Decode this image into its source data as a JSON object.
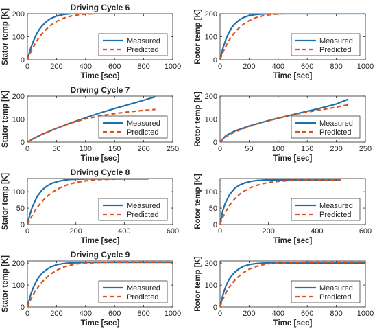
{
  "figure": {
    "background": "#ffffff"
  },
  "colors": {
    "measured": "#1f6fae",
    "predicted": "#d9531e",
    "axis": "#262626"
  },
  "chart_data": [
    {
      "type": "line",
      "title": "Driving Cycle 6",
      "xlabel": "Time [sec]",
      "ylabel": "Stator temp [K]",
      "xlim": [
        0,
        1000
      ],
      "ylim": [
        0,
        200
      ],
      "xticks": [
        0,
        200,
        400,
        600,
        800,
        1000
      ],
      "yticks": [
        0,
        100,
        200
      ],
      "legend": "bottom-right",
      "series": [
        {
          "name": "Measured",
          "style": "solid",
          "x": [
            0,
            20,
            40,
            60,
            80,
            100,
            130,
            160,
            200,
            250,
            300,
            350,
            400,
            500,
            600,
            700,
            800,
            900,
            1000
          ],
          "y": [
            0,
            45,
            80,
            108,
            130,
            147,
            166,
            179,
            190,
            197,
            200,
            201,
            201,
            201,
            201,
            201,
            201,
            201,
            201
          ]
        },
        {
          "name": "Predicted",
          "style": "dashed",
          "x": [
            0,
            20,
            40,
            60,
            80,
            100,
            130,
            160,
            200,
            250,
            300,
            350,
            400,
            500,
            600,
            700,
            800,
            900,
            1000
          ],
          "y": [
            0,
            30,
            55,
            78,
            97,
            113,
            133,
            150,
            166,
            181,
            190,
            195,
            198,
            201,
            202,
            202,
            202,
            202,
            202
          ]
        }
      ]
    },
    {
      "type": "line",
      "title": "",
      "xlabel": "Time [sec]",
      "ylabel": "Rotor temp [K]",
      "xlim": [
        0,
        1000
      ],
      "ylim": [
        0,
        200
      ],
      "xticks": [
        0,
        200,
        400,
        600,
        800,
        1000
      ],
      "yticks": [
        0,
        100,
        200
      ],
      "legend": "bottom-right",
      "series": [
        {
          "name": "Measured",
          "style": "solid",
          "x": [
            0,
            20,
            40,
            60,
            80,
            100,
            130,
            160,
            200,
            250,
            300,
            350,
            400,
            500,
            600,
            700,
            800,
            900,
            1000
          ],
          "y": [
            0,
            50,
            88,
            117,
            139,
            155,
            172,
            183,
            192,
            197,
            199,
            200,
            200,
            200,
            200,
            200,
            200,
            200,
            200
          ]
        },
        {
          "name": "Predicted",
          "style": "dashed",
          "x": [
            0,
            20,
            40,
            60,
            80,
            100,
            130,
            160,
            200,
            250,
            300,
            350,
            400,
            500,
            600,
            700,
            800,
            900,
            1000
          ],
          "y": [
            0,
            32,
            58,
            82,
            102,
            118,
            138,
            154,
            170,
            184,
            192,
            196,
            199,
            201,
            202,
            202,
            202,
            202,
            202
          ]
        }
      ]
    },
    {
      "type": "line",
      "title": "Driving Cycle 7",
      "xlabel": "Time [sec]",
      "ylabel": "Stator temp [K]",
      "xlim": [
        0,
        250
      ],
      "ylim": [
        0,
        200
      ],
      "xticks": [
        0,
        50,
        100,
        150,
        200,
        250
      ],
      "yticks": [
        0,
        100,
        200
      ],
      "legend": "bottom-right",
      "series": [
        {
          "name": "Measured",
          "style": "solid",
          "x": [
            0,
            10,
            25,
            50,
            75,
            100,
            125,
            150,
            175,
            200,
            220
          ],
          "y": [
            0,
            15,
            34,
            60,
            84,
            106,
            127,
            146,
            164,
            182,
            197
          ]
        },
        {
          "name": "Predicted",
          "style": "dashed",
          "x": [
            0,
            10,
            25,
            50,
            75,
            100,
            125,
            150,
            175,
            200,
            220
          ],
          "y": [
            0,
            15,
            34,
            60,
            83,
            101,
            114,
            124,
            132,
            138,
            142
          ]
        }
      ]
    },
    {
      "type": "line",
      "title": "",
      "xlabel": "Time [sec]",
      "ylabel": "Rotor temp [K]",
      "xlim": [
        0,
        250
      ],
      "ylim": [
        0,
        200
      ],
      "xticks": [
        0,
        50,
        100,
        150,
        200,
        250
      ],
      "yticks": [
        0,
        100,
        200
      ],
      "legend": "bottom-right",
      "series": [
        {
          "name": "Measured",
          "style": "solid",
          "x": [
            0,
            10,
            25,
            50,
            75,
            100,
            125,
            150,
            175,
            200,
            220
          ],
          "y": [
            0,
            28,
            48,
            70,
            88,
            104,
            119,
            134,
            149,
            166,
            186
          ]
        },
        {
          "name": "Predicted",
          "style": "dashed",
          "x": [
            0,
            10,
            25,
            50,
            75,
            100,
            125,
            150,
            175,
            200,
            220
          ],
          "y": [
            0,
            24,
            44,
            68,
            88,
            105,
            119,
            131,
            141,
            152,
            162
          ]
        }
      ]
    },
    {
      "type": "line",
      "title": "Driving Cycle 8",
      "xlabel": "Time [sec]",
      "ylabel": "Stator temp [K]",
      "xlim": [
        0,
        600
      ],
      "ylim": [
        0,
        140
      ],
      "xticks": [
        0,
        200,
        400,
        600
      ],
      "yticks": [
        0,
        50,
        100
      ],
      "legend": "bottom-right",
      "series": [
        {
          "name": "Measured",
          "style": "solid",
          "x": [
            0,
            10,
            20,
            40,
            60,
            80,
            100,
            125,
            150,
            175,
            200,
            250,
            300,
            350,
            400,
            450,
            500
          ],
          "y": [
            0,
            30,
            53,
            85,
            105,
            117,
            125,
            131,
            135,
            137,
            138,
            139,
            139,
            139,
            139,
            139,
            139
          ]
        },
        {
          "name": "Predicted",
          "style": "dashed",
          "x": [
            0,
            10,
            20,
            40,
            60,
            80,
            100,
            125,
            150,
            175,
            200,
            250,
            300,
            350,
            400,
            450,
            500
          ],
          "y": [
            0,
            15,
            28,
            52,
            70,
            85,
            97,
            108,
            117,
            123,
            128,
            134,
            137,
            138,
            139,
            139,
            139
          ]
        }
      ]
    },
    {
      "type": "line",
      "title": "",
      "xlabel": "Time [sec]",
      "ylabel": "Rotor temp [K]",
      "xlim": [
        0,
        600
      ],
      "ylim": [
        0,
        140
      ],
      "xticks": [
        0,
        200,
        400,
        600
      ],
      "yticks": [
        0,
        50,
        100
      ],
      "legend": "bottom-right",
      "series": [
        {
          "name": "Measured",
          "style": "solid",
          "x": [
            0,
            10,
            20,
            40,
            60,
            80,
            100,
            125,
            150,
            175,
            200,
            250,
            300,
            350,
            400,
            450,
            500
          ],
          "y": [
            0,
            38,
            62,
            92,
            110,
            120,
            126,
            131,
            134,
            135,
            136,
            136,
            136,
            136,
            136,
            136,
            136
          ]
        },
        {
          "name": "Predicted",
          "style": "dashed",
          "x": [
            0,
            10,
            20,
            40,
            60,
            80,
            100,
            125,
            150,
            175,
            200,
            250,
            300,
            350,
            400,
            450,
            500
          ],
          "y": [
            0,
            20,
            35,
            60,
            78,
            92,
            102,
            112,
            119,
            124,
            128,
            132,
            134,
            135,
            136,
            136,
            136
          ]
        }
      ]
    },
    {
      "type": "line",
      "title": "Driving Cycle 9",
      "xlabel": "Time [sec]",
      "ylabel": "Stator temp [K]",
      "xlim": [
        0,
        1000
      ],
      "ylim": [
        0,
        210
      ],
      "xticks": [
        0,
        200,
        400,
        600,
        800,
        1000
      ],
      "yticks": [
        0,
        100,
        200
      ],
      "legend": "bottom-right",
      "series": [
        {
          "name": "Measured",
          "style": "solid",
          "x": [
            0,
            20,
            40,
            60,
            80,
            100,
            130,
            160,
            200,
            250,
            300,
            350,
            400,
            500,
            600,
            700,
            800,
            900,
            1000
          ],
          "y": [
            0,
            50,
            88,
            116,
            137,
            153,
            170,
            182,
            192,
            198,
            201,
            202,
            203,
            203,
            203,
            203,
            203,
            203,
            203
          ]
        },
        {
          "name": "Predicted",
          "style": "dashed",
          "x": [
            0,
            20,
            40,
            60,
            80,
            100,
            130,
            160,
            200,
            250,
            300,
            350,
            400,
            500,
            600,
            700,
            800,
            900,
            1000
          ],
          "y": [
            0,
            30,
            56,
            78,
            97,
            113,
            133,
            150,
            167,
            182,
            191,
            197,
            200,
            203,
            204,
            204,
            204,
            204,
            204
          ]
        }
      ]
    },
    {
      "type": "line",
      "title": "",
      "xlabel": "Time [sec]",
      "ylabel": "Rotor temp [K]",
      "xlim": [
        0,
        1000
      ],
      "ylim": [
        0,
        210
      ],
      "xticks": [
        0,
        200,
        400,
        600,
        800,
        1000
      ],
      "yticks": [
        0,
        100,
        200
      ],
      "legend": "bottom-right",
      "series": [
        {
          "name": "Measured",
          "style": "solid",
          "x": [
            0,
            20,
            40,
            60,
            80,
            100,
            130,
            160,
            200,
            250,
            300,
            350,
            400,
            500,
            600,
            700,
            800,
            900,
            1000
          ],
          "y": [
            0,
            55,
            95,
            123,
            143,
            158,
            174,
            185,
            193,
            198,
            200,
            201,
            201,
            201,
            201,
            201,
            201,
            201,
            201
          ]
        },
        {
          "name": "Predicted",
          "style": "dashed",
          "x": [
            0,
            20,
            40,
            60,
            80,
            100,
            130,
            160,
            200,
            250,
            300,
            350,
            400,
            500,
            600,
            700,
            800,
            900,
            1000
          ],
          "y": [
            0,
            35,
            63,
            86,
            105,
            121,
            140,
            156,
            172,
            185,
            193,
            198,
            201,
            203,
            204,
            204,
            204,
            204,
            204
          ]
        }
      ]
    }
  ]
}
